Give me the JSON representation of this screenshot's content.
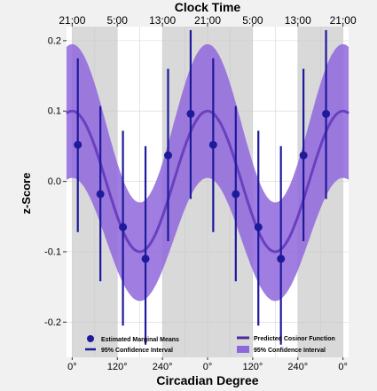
{
  "chart_data": {
    "type": "line",
    "title_top": "Clock Time",
    "top_ticks": [
      "21:00",
      "5:00",
      "13:00",
      "21:00",
      "5:00",
      "13:00",
      "21:00"
    ],
    "xlabel": "Circadian Degree",
    "bottom_ticks": [
      "0°",
      "120°",
      "240°",
      "0°",
      "120°",
      "240°",
      "0°"
    ],
    "ylabel": "z-Score",
    "y_ticks": [
      "0.2",
      "0.1",
      "0.0",
      "-0.1",
      "-0.2"
    ],
    "ylim": [
      -0.25,
      0.22
    ],
    "x_unit": "degrees over two cycles",
    "xlim": [
      -15,
      735
    ],
    "cosinor": {
      "mesor": 0.0,
      "amplitude": 0.1,
      "acrophase_deg": 0,
      "ci_halfwidth_peak": 0.095,
      "ci_halfwidth_trough": 0.07
    },
    "points": [
      {
        "x": 15,
        "y": 0.052,
        "lo": -0.072,
        "hi": 0.175
      },
      {
        "x": 75,
        "y": -0.018,
        "lo": -0.142,
        "hi": 0.107
      },
      {
        "x": 135,
        "y": -0.065,
        "lo": -0.205,
        "hi": 0.072
      },
      {
        "x": 195,
        "y": -0.11,
        "lo": -0.232,
        "hi": 0.05
      },
      {
        "x": 255,
        "y": 0.037,
        "lo": -0.085,
        "hi": 0.16
      },
      {
        "x": 315,
        "y": 0.096,
        "lo": -0.025,
        "hi": 0.215
      },
      {
        "x": 375,
        "y": 0.052,
        "lo": -0.072,
        "hi": 0.175
      },
      {
        "x": 435,
        "y": -0.018,
        "lo": -0.142,
        "hi": 0.107
      },
      {
        "x": 495,
        "y": -0.065,
        "lo": -0.205,
        "hi": 0.072
      },
      {
        "x": 555,
        "y": -0.11,
        "lo": -0.232,
        "hi": 0.05
      },
      {
        "x": 615,
        "y": 0.037,
        "lo": -0.085,
        "hi": 0.16
      },
      {
        "x": 675,
        "y": 0.096,
        "lo": -0.025,
        "hi": 0.215
      }
    ],
    "shaded_x": [
      [
        0,
        120
      ],
      [
        240,
        480
      ],
      [
        600,
        720
      ]
    ],
    "legend": {
      "means": "Estimated Marginal Means",
      "ci_line": "95% Confidence Interval",
      "cosinor": "Predicted Cosinor Function",
      "ci_band": "95% Confidence Interval"
    },
    "colors": {
      "point": "#1e1a9c",
      "curve": "#6a3fc0",
      "band": "#8f67dc",
      "shade": "#d9d9d9",
      "grid": "#ffffff"
    }
  }
}
